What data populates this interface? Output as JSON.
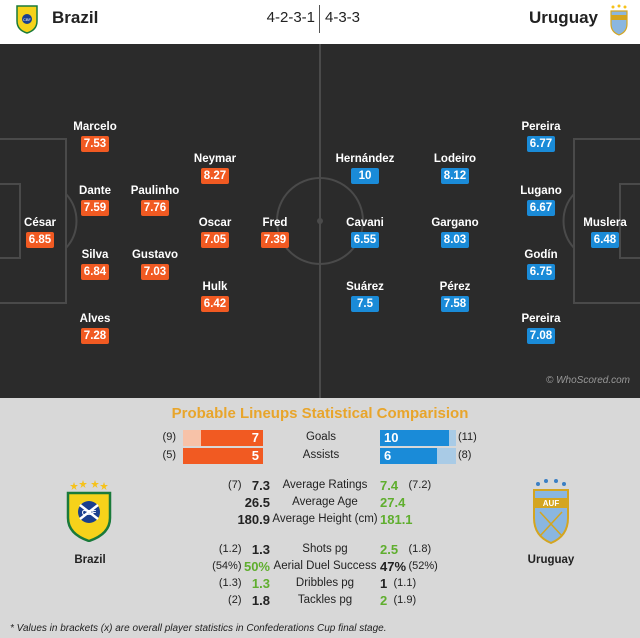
{
  "header": {
    "home_team": "Brazil",
    "away_team": "Uruguay",
    "home_formation": "4-2-3-1",
    "away_formation": "4-3-3"
  },
  "colors": {
    "home": "#f15a22",
    "away": "#1a8bd8",
    "title": "#e8a52b",
    "highlight": "#5fae2e"
  },
  "pitch": {
    "watermark": "© WhoScored.com",
    "home_players": [
      {
        "name": "César",
        "rating": "6.85"
      },
      {
        "name": "Marcelo",
        "rating": "7.53"
      },
      {
        "name": "Dante",
        "rating": "7.59"
      },
      {
        "name": "Silva",
        "rating": "6.84"
      },
      {
        "name": "Alves",
        "rating": "7.28"
      },
      {
        "name": "Paulinho",
        "rating": "7.76"
      },
      {
        "name": "Gustavo",
        "rating": "7.03"
      },
      {
        "name": "Neymar",
        "rating": "8.27"
      },
      {
        "name": "Oscar",
        "rating": "7.05"
      },
      {
        "name": "Hulk",
        "rating": "6.42"
      },
      {
        "name": "Fred",
        "rating": "7.39"
      }
    ],
    "away_players": [
      {
        "name": "Hernández",
        "rating": "10"
      },
      {
        "name": "Cavani",
        "rating": "6.55"
      },
      {
        "name": "Suárez",
        "rating": "7.5"
      },
      {
        "name": "Lodeiro",
        "rating": "8.12"
      },
      {
        "name": "Gargano",
        "rating": "8.03"
      },
      {
        "name": "Pérez",
        "rating": "7.58"
      },
      {
        "name": "Pereira",
        "rating": "6.77"
      },
      {
        "name": "Lugano",
        "rating": "6.67"
      },
      {
        "name": "Godín",
        "rating": "6.75"
      },
      {
        "name": "Pereira",
        "rating": "7.08"
      },
      {
        "name": "Muslera",
        "rating": "6.48"
      }
    ]
  },
  "stats": {
    "title": "Probable Lineups Statistical Comparision",
    "bars": [
      {
        "label": "Goals",
        "home": "7",
        "home_bracket": "(9)",
        "home_fraction": 0.78,
        "away": "10",
        "away_bracket": "(11)",
        "away_fraction": 0.91
      },
      {
        "label": "Assists",
        "home": "5",
        "home_bracket": "(5)",
        "home_fraction": 1.0,
        "away": "6",
        "away_bracket": "(8)",
        "away_fraction": 0.75
      }
    ],
    "group1": [
      {
        "label": "Average Ratings",
        "home": "7.3",
        "home_bracket": "(7)",
        "away": "7.4",
        "away_bracket": "(7.2)",
        "winner": "away"
      },
      {
        "label": "Average Age",
        "home": "26.5",
        "home_bracket": "",
        "away": "27.4",
        "away_bracket": "",
        "winner": "away"
      },
      {
        "label": "Average Height (cm)",
        "home": "180.9",
        "home_bracket": "",
        "away": "181.1",
        "away_bracket": "",
        "winner": "away"
      }
    ],
    "group2": [
      {
        "label": "Shots pg",
        "home": "1.3",
        "home_bracket": "(1.2)",
        "away": "2.5",
        "away_bracket": "(1.8)",
        "winner": "away"
      },
      {
        "label": "Aerial Duel Success",
        "home": "50%",
        "home_bracket": "(54%)",
        "away": "47%",
        "away_bracket": "(52%)",
        "winner": "home"
      },
      {
        "label": "Dribbles pg",
        "home": "1.3",
        "home_bracket": "(1.3)",
        "away": "1",
        "away_bracket": "(1.1)",
        "winner": "home"
      },
      {
        "label": "Tackles pg",
        "home": "1.8",
        "home_bracket": "(2)",
        "away": "2",
        "away_bracket": "(1.9)",
        "winner": "away"
      }
    ],
    "home_badge_team": "Brazil",
    "away_badge_team": "Uruguay",
    "footnote": "* Values in brackets (x) are overall player statistics in Confederations Cup final stage."
  }
}
